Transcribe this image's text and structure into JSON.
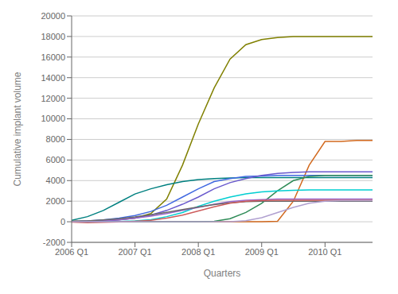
{
  "chart_data": {
    "type": "line",
    "xlabel": "Quarters",
    "ylabel": "Cumulative implant volume",
    "x": [
      0,
      1,
      2,
      3,
      4,
      5,
      6,
      7,
      8,
      9,
      10,
      11,
      12,
      13,
      14,
      15,
      16,
      17,
      18,
      19
    ],
    "xlim": [
      0,
      19
    ],
    "xticks": [
      {
        "value": 0,
        "label": "2006 Q1"
      },
      {
        "value": 4,
        "label": "2007 Q1"
      },
      {
        "value": 8,
        "label": "2008 Q1"
      },
      {
        "value": 12,
        "label": "2009 Q1"
      },
      {
        "value": 16,
        "label": "2010 Q1"
      }
    ],
    "ylim": [
      -2000,
      20000
    ],
    "yticks": [
      -2000,
      0,
      2000,
      4000,
      6000,
      8000,
      10000,
      12000,
      14000,
      16000,
      18000,
      20000
    ],
    "grid": true,
    "series": [
      {
        "color": "#808000",
        "values": [
          50,
          80,
          130,
          200,
          350,
          800,
          2200,
          5500,
          9500,
          13000,
          15800,
          17200,
          17700,
          17900,
          18000,
          18000,
          18000,
          18000,
          18000,
          18000
        ]
      },
      {
        "color": "#d2691e",
        "values": [
          0,
          0,
          0,
          0,
          0,
          0,
          0,
          0,
          0,
          0,
          0,
          0,
          0,
          50,
          2000,
          5500,
          7800,
          7800,
          7900,
          7900
        ]
      },
      {
        "color": "#008080",
        "values": [
          150,
          500,
          1100,
          1900,
          2700,
          3200,
          3600,
          3900,
          4100,
          4200,
          4250,
          4300,
          4300,
          4300,
          4300,
          4300,
          4300,
          4300,
          4300,
          4300
        ]
      },
      {
        "color": "#4169e1",
        "values": [
          30,
          80,
          180,
          350,
          600,
          1000,
          1600,
          2400,
          3200,
          3900,
          4200,
          4400,
          4450,
          4500,
          4500,
          4500,
          4500,
          4500,
          4500,
          4500
        ]
      },
      {
        "color": "#6959cd",
        "values": [
          10,
          30,
          80,
          180,
          350,
          650,
          1100,
          1700,
          2400,
          3200,
          3800,
          4200,
          4500,
          4700,
          4800,
          4850,
          4850,
          4850,
          4850,
          4850
        ]
      },
      {
        "color": "#2e8b57",
        "values": [
          0,
          0,
          0,
          0,
          0,
          0,
          0,
          0,
          0,
          50,
          300,
          900,
          1800,
          3000,
          4000,
          4400,
          4500,
          4500,
          4500,
          4500
        ]
      },
      {
        "color": "#00ced1",
        "values": [
          0,
          0,
          10,
          30,
          80,
          200,
          500,
          900,
          1500,
          2000,
          2400,
          2700,
          2900,
          3000,
          3050,
          3100,
          3100,
          3100,
          3100,
          3100
        ]
      },
      {
        "color": "#9966cc",
        "values": [
          20,
          50,
          100,
          200,
          350,
          550,
          800,
          1100,
          1400,
          1700,
          1950,
          2100,
          2150,
          2200,
          2200,
          2200,
          2200,
          2200,
          2200,
          2200
        ]
      },
      {
        "color": "#696969",
        "values": [
          40,
          90,
          180,
          300,
          470,
          680,
          920,
          1180,
          1430,
          1660,
          1840,
          1950,
          1990,
          2000,
          2000,
          2000,
          2000,
          2000,
          2000,
          2000
        ]
      },
      {
        "color": "#cd5c5c",
        "values": [
          -30,
          -80,
          -60,
          -20,
          50,
          150,
          350,
          650,
          1050,
          1450,
          1800,
          2000,
          2080,
          2100,
          2100,
          2100,
          2100,
          2100,
          2100,
          2100
        ]
      },
      {
        "color": "#b0a0d0",
        "values": [
          0,
          0,
          0,
          0,
          0,
          0,
          0,
          0,
          0,
          0,
          0,
          100,
          400,
          900,
          1400,
          1800,
          2000,
          2050,
          2050,
          2050
        ]
      }
    ]
  }
}
